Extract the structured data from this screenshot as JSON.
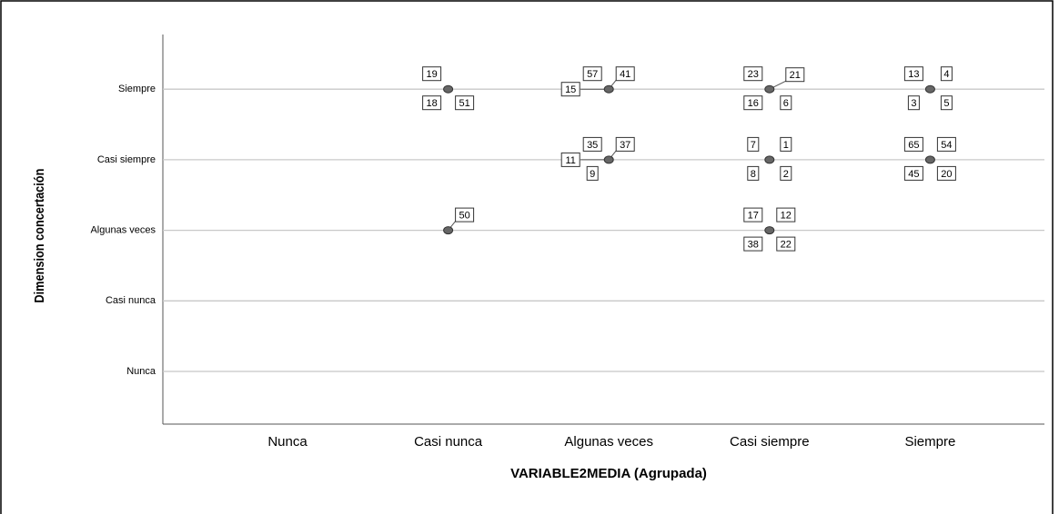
{
  "chart_data": {
    "type": "scatter",
    "x_label": "VARIABLE2MEDIA (Agrupada)",
    "y_label": "Dimension concertación",
    "x_categories": [
      "Nunca",
      "Casi nunca",
      "Algunas veces",
      "Casi siempre",
      "Siempre"
    ],
    "y_categories": [
      "Nunca",
      "Casi nunca",
      "Algunas veces",
      "Casi siempre",
      "Siempre"
    ],
    "grid": true,
    "color": "#666666",
    "points": [
      {
        "x": "Casi nunca",
        "y": "Siempre",
        "labels": [
          19,
          18,
          51
        ]
      },
      {
        "x": "Casi nunca",
        "y": "Algunas veces",
        "labels": [
          50
        ]
      },
      {
        "x": "Algunas veces",
        "y": "Siempre",
        "labels": [
          57,
          41,
          15
        ]
      },
      {
        "x": "Algunas veces",
        "y": "Casi siempre",
        "labels": [
          35,
          37,
          11,
          9
        ]
      },
      {
        "x": "Casi siempre",
        "y": "Siempre",
        "labels": [
          23,
          21,
          16,
          6
        ]
      },
      {
        "x": "Casi siempre",
        "y": "Casi siempre",
        "labels": [
          7,
          1,
          8,
          2
        ]
      },
      {
        "x": "Casi siempre",
        "y": "Algunas veces",
        "labels": [
          17,
          12,
          38,
          22
        ]
      },
      {
        "x": "Siempre",
        "y": "Siempre",
        "labels": [
          13,
          4,
          3,
          5
        ]
      },
      {
        "x": "Siempre",
        "y": "Casi siempre",
        "labels": [
          65,
          54,
          45,
          20
        ]
      }
    ]
  }
}
